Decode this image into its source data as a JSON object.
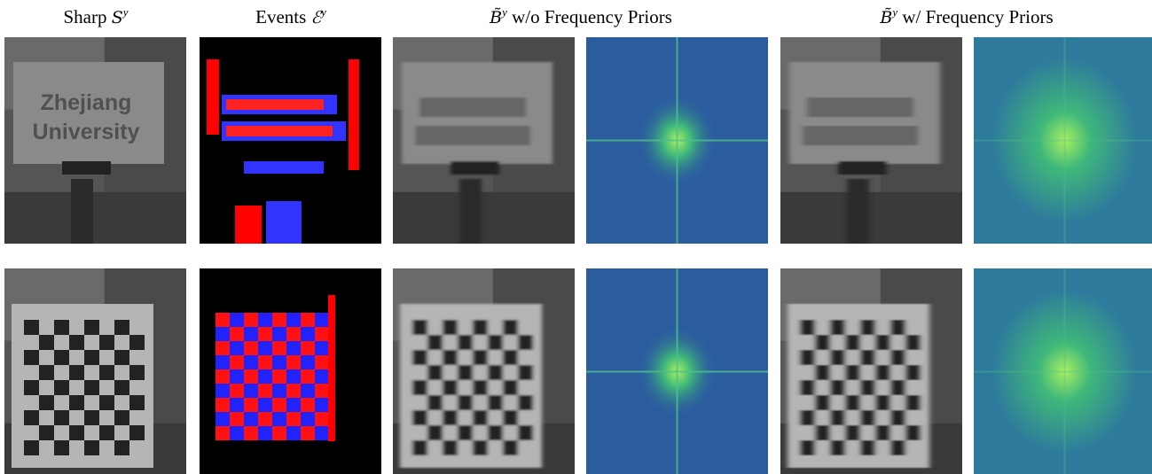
{
  "columns": [
    {
      "text": "Sharp",
      "symbol": "S",
      "sup": "y"
    },
    {
      "text": "Events",
      "symbol": "ℰ",
      "sup": "y"
    },
    {
      "symbol": "B̃",
      "sup": "y",
      "text": "w/o Frequency Priors"
    },
    {
      "symbol": "B̃",
      "sup": "y",
      "text": "w/ Frequency Priors"
    }
  ],
  "sign": {
    "line1": "Zhejiang",
    "line2": "University"
  }
}
